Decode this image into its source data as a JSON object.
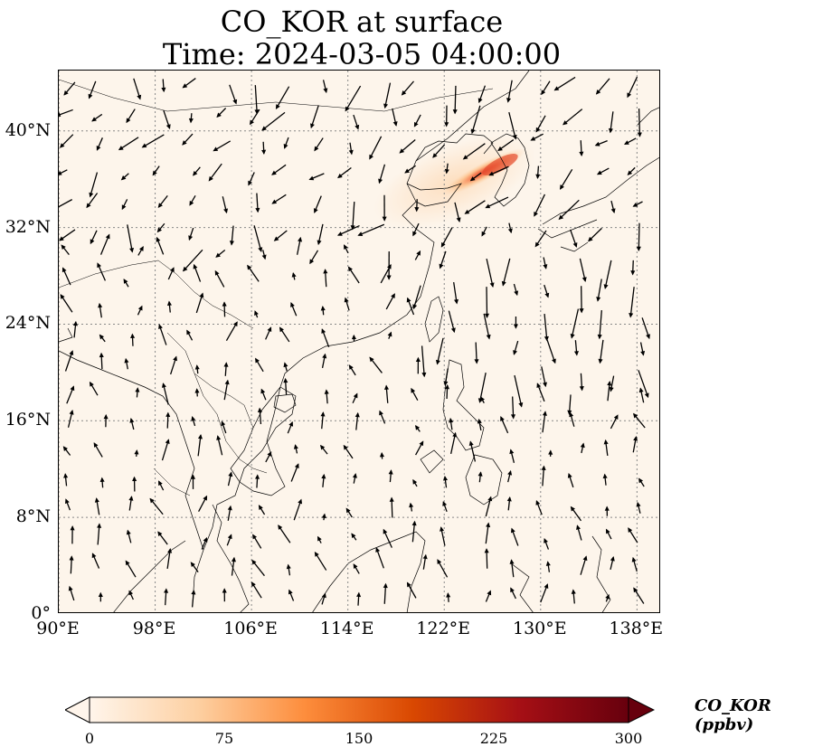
{
  "title_line1": "CO_KOR at surface",
  "title_line2": "Time: 2024-03-05 04:00:00",
  "map": {
    "extent": {
      "lon": [
        90,
        140
      ],
      "lat": [
        0,
        45
      ]
    },
    "background_color": "#fdf5eb",
    "gridlines": true,
    "lat_ticks": [
      {
        "value": 40,
        "label": "40°N"
      },
      {
        "value": 32,
        "label": "32°N"
      },
      {
        "value": 24,
        "label": "24°N"
      },
      {
        "value": 16,
        "label": "16°N"
      },
      {
        "value": 8,
        "label": "8°N"
      },
      {
        "value": 0,
        "label": "0°"
      }
    ],
    "lon_ticks": [
      {
        "value": 90,
        "label": "90°E"
      },
      {
        "value": 98,
        "label": "98°E"
      },
      {
        "value": 106,
        "label": "106°E"
      },
      {
        "value": 114,
        "label": "114°E"
      },
      {
        "value": 122,
        "label": "122°E"
      },
      {
        "value": 130,
        "label": "130°E"
      },
      {
        "value": 138,
        "label": "138°E"
      }
    ],
    "plume": {
      "center_lon": 125.5,
      "center_lat": 36.5,
      "peak_ppbv": 200
    },
    "wind_field": "arrows"
  },
  "colorbar": {
    "label": "CO_KOR (ppbv)",
    "min": 0,
    "max": 300,
    "ticks": [
      "0",
      "75",
      "150",
      "225",
      "300"
    ],
    "colors": [
      "#fff5eb",
      "#fdd0a2",
      "#fd8d3c",
      "#d94801",
      "#a50f15",
      "#67000d"
    ],
    "extend": "both"
  }
}
